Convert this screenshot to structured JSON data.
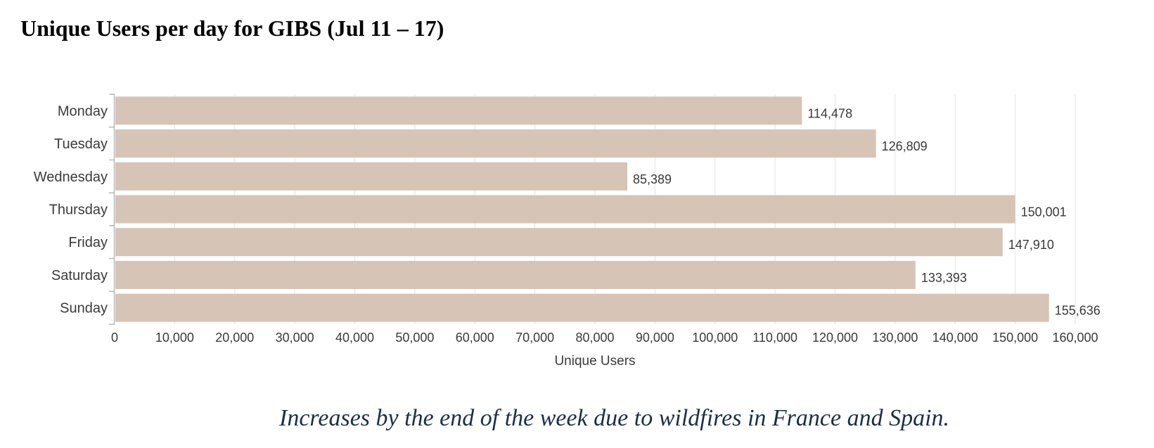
{
  "title": "Unique Users per day for GIBS (Jul 11 – 17)",
  "caption": "Increases by the end of the week due to wildfires in France and Spain.",
  "colors": {
    "bar": "#d6c4b6",
    "grid": "#e3e3e3",
    "axis": "#b8b8b8",
    "text": "#3a3a3a",
    "caption": "#1c2e4a"
  },
  "chart_data": {
    "type": "bar",
    "orientation": "horizontal",
    "categories": [
      "Monday",
      "Tuesday",
      "Wednesday",
      "Thursday",
      "Friday",
      "Saturday",
      "Sunday"
    ],
    "values": [
      114478,
      126809,
      85389,
      150001,
      147910,
      133393,
      155636
    ],
    "value_labels": [
      "114,478",
      "126,809",
      "85,389",
      "150,001",
      "147,910",
      "133,393",
      "155,636"
    ],
    "xlabel": "Unique Users",
    "ylabel": "",
    "xlim": [
      0,
      160000
    ],
    "xticks": [
      0,
      10000,
      20000,
      30000,
      40000,
      50000,
      60000,
      70000,
      80000,
      90000,
      100000,
      110000,
      120000,
      130000,
      140000,
      150000,
      160000
    ],
    "xtick_labels": [
      "0",
      "10,000",
      "20,000",
      "30,000",
      "40,000",
      "50,000",
      "60,000",
      "70,000",
      "80,000",
      "90,000",
      "100,000",
      "110,000",
      "120,000",
      "130,000",
      "140,000",
      "150,000",
      "160,000"
    ],
    "grid": true,
    "legend": false
  }
}
